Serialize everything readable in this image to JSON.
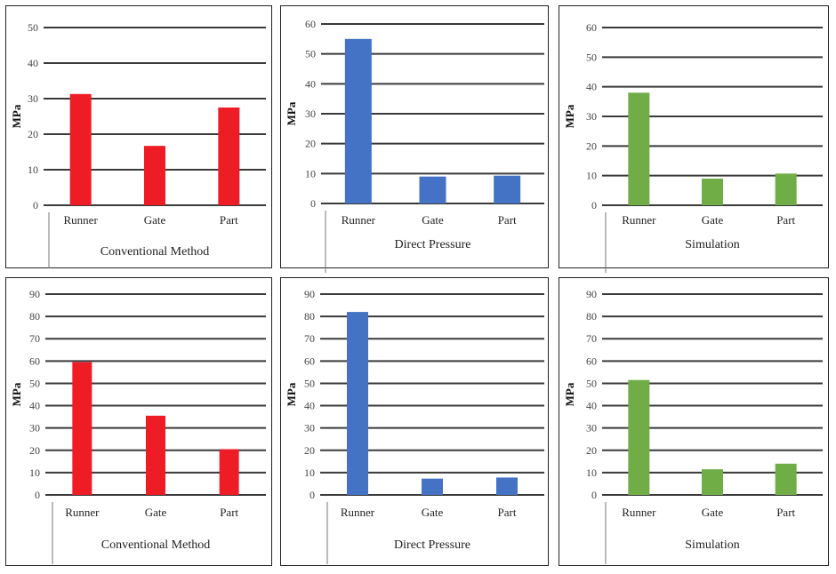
{
  "colors": {
    "conventional": "#ee1c25",
    "direct": "#4472c4",
    "simulation": "#70ad47",
    "grid": "#3a3a3a"
  },
  "chart_data": [
    {
      "type": "bar",
      "title": "Conventional Method",
      "ylabel": "MPa",
      "categories": [
        "Runner",
        "Gate",
        "Part"
      ],
      "values": [
        31.3,
        16.7,
        27.5
      ],
      "ylim": [
        0,
        50
      ],
      "yticks": [
        "0",
        "10",
        "20",
        "30",
        "40",
        "50"
      ],
      "color": "#ee1c25"
    },
    {
      "type": "bar",
      "title": "Direct Pressure",
      "ylabel": "MPa",
      "categories": [
        "Runner",
        "Gate",
        "Part"
      ],
      "values": [
        55,
        9,
        9.3
      ],
      "ylim": [
        0,
        60
      ],
      "yticks": [
        "0",
        "10",
        "20",
        "30",
        "40",
        "50",
        "60"
      ],
      "color": "#4472c4"
    },
    {
      "type": "bar",
      "title": "Simulation",
      "ylabel": "MPa",
      "categories": [
        "Runner",
        "Gate",
        "Part"
      ],
      "values": [
        38,
        9,
        10.7
      ],
      "ylim": [
        0,
        60
      ],
      "yticks": [
        "0",
        "10",
        "20",
        "30",
        "40",
        "50",
        "60"
      ],
      "color": "#70ad47"
    },
    {
      "type": "bar",
      "title": "Conventional Method",
      "ylabel": "MPa",
      "categories": [
        "Runner",
        "Gate",
        "Part"
      ],
      "values": [
        59.5,
        35.5,
        20.5
      ],
      "ylim": [
        0,
        90
      ],
      "yticks": [
        "0",
        "10",
        "20",
        "30",
        "40",
        "50",
        "60",
        "70",
        "80",
        "90"
      ],
      "color": "#ee1c25"
    },
    {
      "type": "bar",
      "title": "Direct Pressure",
      "ylabel": "MPa",
      "categories": [
        "Runner",
        "Gate",
        "Part"
      ],
      "values": [
        82,
        7.3,
        7.8
      ],
      "ylim": [
        0,
        90
      ],
      "yticks": [
        "0",
        "10",
        "20",
        "30",
        "40",
        "50",
        "60",
        "70",
        "80",
        "90"
      ],
      "color": "#4472c4"
    },
    {
      "type": "bar",
      "title": "Simulation",
      "ylabel": "MPa",
      "categories": [
        "Runner",
        "Gate",
        "Part"
      ],
      "values": [
        51.5,
        11.5,
        14
      ],
      "ylim": [
        0,
        90
      ],
      "yticks": [
        "0",
        "10",
        "20",
        "30",
        "40",
        "50",
        "60",
        "70",
        "80",
        "90"
      ],
      "color": "#70ad47"
    }
  ]
}
